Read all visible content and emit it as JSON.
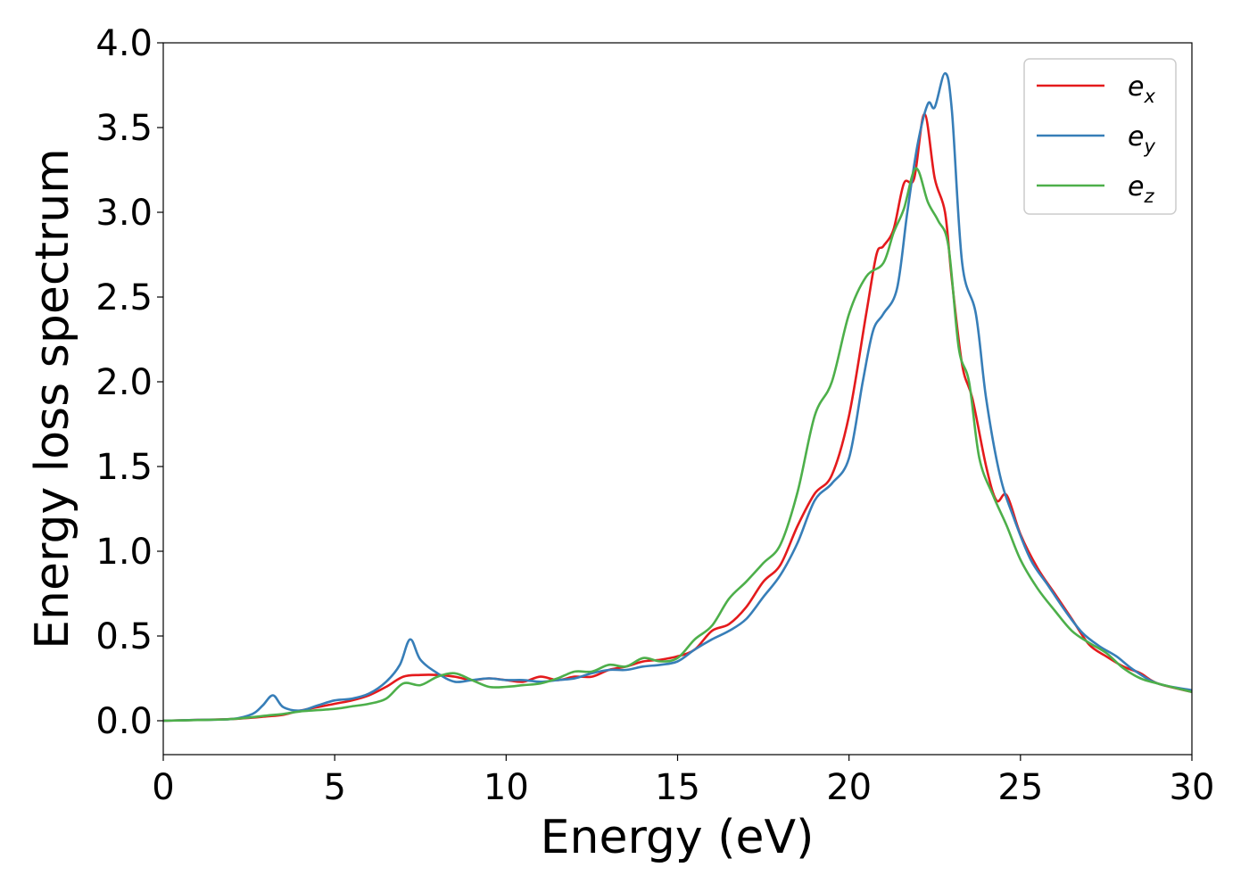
{
  "chart_data": {
    "type": "line",
    "title": "",
    "xlabel": "Energy (eV)",
    "ylabel": "Energy loss spectrum",
    "xlim": [
      0,
      30
    ],
    "ylim": [
      -0.2,
      4.0
    ],
    "xticks": [
      "0",
      "5",
      "10",
      "15",
      "20",
      "25",
      "30"
    ],
    "yticks": [
      "0.0",
      "0.5",
      "1.0",
      "1.5",
      "2.0",
      "2.5",
      "3.0",
      "3.5",
      "4.0"
    ],
    "grid": false,
    "legend_position": "top-right",
    "series": [
      {
        "name": "e",
        "subscript": "x",
        "color": "#e41a1c",
        "points": [
          [
            0,
            0
          ],
          [
            1,
            0.005
          ],
          [
            2,
            0.01
          ],
          [
            3,
            0.025
          ],
          [
            3.5,
            0.035
          ],
          [
            4,
            0.06
          ],
          [
            5,
            0.1
          ],
          [
            5.5,
            0.12
          ],
          [
            6,
            0.15
          ],
          [
            6.5,
            0.2
          ],
          [
            7,
            0.26
          ],
          [
            7.5,
            0.27
          ],
          [
            8,
            0.27
          ],
          [
            8.5,
            0.26
          ],
          [
            9,
            0.24
          ],
          [
            9.5,
            0.25
          ],
          [
            10,
            0.24
          ],
          [
            10.5,
            0.23
          ],
          [
            11,
            0.26
          ],
          [
            11.5,
            0.24
          ],
          [
            12,
            0.26
          ],
          [
            12.5,
            0.26
          ],
          [
            13,
            0.3
          ],
          [
            13.5,
            0.32
          ],
          [
            14,
            0.35
          ],
          [
            14.5,
            0.36
          ],
          [
            15,
            0.38
          ],
          [
            15.5,
            0.42
          ],
          [
            16,
            0.53
          ],
          [
            16.5,
            0.57
          ],
          [
            17,
            0.67
          ],
          [
            17.5,
            0.82
          ],
          [
            18,
            0.92
          ],
          [
            18.5,
            1.15
          ],
          [
            19,
            1.34
          ],
          [
            19.5,
            1.45
          ],
          [
            20,
            1.8
          ],
          [
            20.5,
            2.4
          ],
          [
            20.8,
            2.75
          ],
          [
            21,
            2.8
          ],
          [
            21.3,
            2.9
          ],
          [
            21.6,
            3.17
          ],
          [
            21.9,
            3.2
          ],
          [
            22.2,
            3.58
          ],
          [
            22.5,
            3.2
          ],
          [
            22.8,
            3.0
          ],
          [
            23,
            2.6
          ],
          [
            23.3,
            2.1
          ],
          [
            23.6,
            1.9
          ],
          [
            24,
            1.5
          ],
          [
            24.3,
            1.3
          ],
          [
            24.6,
            1.33
          ],
          [
            25,
            1.1
          ],
          [
            25.5,
            0.9
          ],
          [
            26,
            0.75
          ],
          [
            26.5,
            0.6
          ],
          [
            27,
            0.45
          ],
          [
            27.5,
            0.38
          ],
          [
            28,
            0.32
          ],
          [
            28.5,
            0.28
          ],
          [
            29,
            0.22
          ],
          [
            30,
            0.17
          ]
        ]
      },
      {
        "name": "e",
        "subscript": "y",
        "color": "#377eb8",
        "points": [
          [
            0,
            0
          ],
          [
            1,
            0.005
          ],
          [
            2,
            0.01
          ],
          [
            2.6,
            0.04
          ],
          [
            2.9,
            0.09
          ],
          [
            3.2,
            0.15
          ],
          [
            3.5,
            0.08
          ],
          [
            4,
            0.06
          ],
          [
            4.5,
            0.09
          ],
          [
            5,
            0.12
          ],
          [
            5.5,
            0.13
          ],
          [
            6,
            0.16
          ],
          [
            6.5,
            0.23
          ],
          [
            6.9,
            0.33
          ],
          [
            7.2,
            0.48
          ],
          [
            7.5,
            0.36
          ],
          [
            8,
            0.28
          ],
          [
            8.5,
            0.23
          ],
          [
            9,
            0.24
          ],
          [
            9.5,
            0.25
          ],
          [
            10,
            0.24
          ],
          [
            10.5,
            0.24
          ],
          [
            11,
            0.23
          ],
          [
            11.5,
            0.24
          ],
          [
            12,
            0.25
          ],
          [
            12.5,
            0.28
          ],
          [
            13,
            0.3
          ],
          [
            13.5,
            0.3
          ],
          [
            14,
            0.32
          ],
          [
            14.5,
            0.33
          ],
          [
            15,
            0.35
          ],
          [
            15.5,
            0.42
          ],
          [
            16,
            0.48
          ],
          [
            16.5,
            0.53
          ],
          [
            17,
            0.6
          ],
          [
            17.5,
            0.73
          ],
          [
            18,
            0.86
          ],
          [
            18.5,
            1.05
          ],
          [
            19,
            1.3
          ],
          [
            19.5,
            1.4
          ],
          [
            20,
            1.55
          ],
          [
            20.4,
            2.0
          ],
          [
            20.7,
            2.3
          ],
          [
            21,
            2.4
          ],
          [
            21.4,
            2.55
          ],
          [
            21.7,
            3.0
          ],
          [
            22,
            3.4
          ],
          [
            22.3,
            3.64
          ],
          [
            22.5,
            3.62
          ],
          [
            22.8,
            3.82
          ],
          [
            23,
            3.6
          ],
          [
            23.3,
            2.7
          ],
          [
            23.7,
            2.4
          ],
          [
            24,
            1.9
          ],
          [
            24.4,
            1.45
          ],
          [
            24.8,
            1.2
          ],
          [
            25.3,
            0.95
          ],
          [
            25.8,
            0.8
          ],
          [
            26.3,
            0.65
          ],
          [
            26.8,
            0.52
          ],
          [
            27.3,
            0.44
          ],
          [
            27.8,
            0.38
          ],
          [
            28.3,
            0.3
          ],
          [
            29,
            0.22
          ],
          [
            30,
            0.18
          ]
        ]
      },
      {
        "name": "e",
        "subscript": "z",
        "color": "#4daf4a",
        "points": [
          [
            0,
            0
          ],
          [
            1,
            0.004
          ],
          [
            2,
            0.01
          ],
          [
            3,
            0.03
          ],
          [
            3.5,
            0.04
          ],
          [
            4,
            0.055
          ],
          [
            5,
            0.07
          ],
          [
            5.5,
            0.085
          ],
          [
            6,
            0.1
          ],
          [
            6.5,
            0.13
          ],
          [
            7,
            0.22
          ],
          [
            7.5,
            0.21
          ],
          [
            8,
            0.26
          ],
          [
            8.5,
            0.28
          ],
          [
            9,
            0.24
          ],
          [
            9.5,
            0.2
          ],
          [
            10,
            0.2
          ],
          [
            10.5,
            0.21
          ],
          [
            11,
            0.22
          ],
          [
            11.5,
            0.25
          ],
          [
            12,
            0.29
          ],
          [
            12.5,
            0.29
          ],
          [
            13,
            0.33
          ],
          [
            13.5,
            0.32
          ],
          [
            14,
            0.37
          ],
          [
            14.5,
            0.35
          ],
          [
            15,
            0.37
          ],
          [
            15.5,
            0.48
          ],
          [
            16,
            0.56
          ],
          [
            16.5,
            0.72
          ],
          [
            17,
            0.82
          ],
          [
            17.5,
            0.93
          ],
          [
            18,
            1.04
          ],
          [
            18.5,
            1.35
          ],
          [
            19,
            1.8
          ],
          [
            19.5,
            2.0
          ],
          [
            20,
            2.4
          ],
          [
            20.5,
            2.62
          ],
          [
            21,
            2.7
          ],
          [
            21.3,
            2.88
          ],
          [
            21.6,
            3.02
          ],
          [
            21.95,
            3.26
          ],
          [
            22.3,
            3.06
          ],
          [
            22.6,
            2.95
          ],
          [
            22.9,
            2.8
          ],
          [
            23.2,
            2.2
          ],
          [
            23.5,
            2.0
          ],
          [
            23.8,
            1.55
          ],
          [
            24.2,
            1.33
          ],
          [
            24.6,
            1.15
          ],
          [
            25,
            0.95
          ],
          [
            25.5,
            0.78
          ],
          [
            26,
            0.65
          ],
          [
            26.5,
            0.53
          ],
          [
            27,
            0.46
          ],
          [
            27.5,
            0.4
          ],
          [
            28,
            0.31
          ],
          [
            28.5,
            0.25
          ],
          [
            29,
            0.22
          ],
          [
            30,
            0.17
          ]
        ]
      }
    ]
  }
}
